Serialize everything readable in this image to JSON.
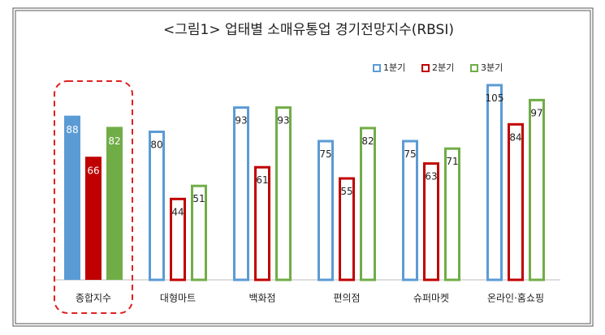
{
  "chart_data": {
    "type": "bar",
    "title": "<그림1> 업태별 소매유통업 경기전망지수(RBSI)",
    "categories": [
      "종합지수",
      "대형마트",
      "백화점",
      "편의점",
      "슈퍼마켓",
      "온라인·홈쇼핑"
    ],
    "series": [
      {
        "name": "1분기",
        "color": "#5b9bd5",
        "values": [
          88,
          80,
          93,
          75,
          75,
          105
        ]
      },
      {
        "name": "2분기",
        "color": "#c00000",
        "values": [
          66,
          44,
          61,
          55,
          63,
          84
        ]
      },
      {
        "name": "3분기",
        "color": "#70ad47",
        "values": [
          82,
          51,
          93,
          82,
          71,
          97
        ]
      }
    ],
    "legend": "top-right"
  }
}
